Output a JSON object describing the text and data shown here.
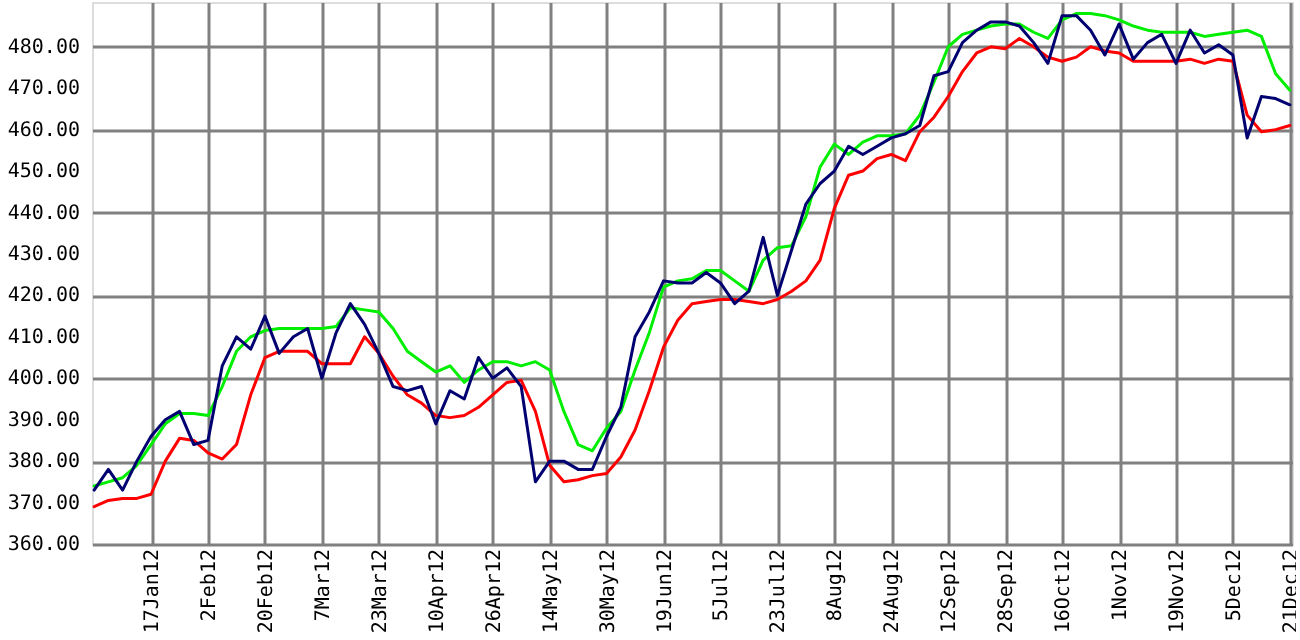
{
  "chart_data": {
    "type": "line",
    "categories": [
      null,
      null,
      null,
      null,
      "17Jan12",
      null,
      null,
      null,
      "2Feb12",
      null,
      null,
      null,
      "20Feb12",
      null,
      null,
      null,
      "7Mar12",
      null,
      null,
      null,
      "23Mar12",
      null,
      null,
      null,
      "10Apr12",
      null,
      null,
      null,
      "26Apr12",
      null,
      null,
      null,
      "14May12",
      null,
      null,
      null,
      "30May12",
      null,
      null,
      null,
      "19Jun12",
      null,
      null,
      null,
      "5Jul12",
      null,
      null,
      null,
      "23Jul12",
      null,
      null,
      null,
      "8Aug12",
      null,
      null,
      null,
      "24Aug12",
      null,
      null,
      null,
      "12Sep12",
      null,
      null,
      null,
      "28Sep12",
      null,
      null,
      null,
      "16Oct12",
      null,
      null,
      null,
      "1Nov12",
      null,
      null,
      null,
      "19Nov12",
      null,
      null,
      null,
      "5Dec12",
      null,
      null,
      null,
      "21Dec12"
    ],
    "ylim": [
      360,
      490.8
    ],
    "yticks": [
      {
        "value": 360,
        "label": "360.00"
      },
      {
        "value": 370,
        "label": "370.00"
      },
      {
        "value": 380,
        "label": "380.00"
      },
      {
        "value": 390,
        "label": "390.00"
      },
      {
        "value": 400,
        "label": "400.00"
      },
      {
        "value": 410,
        "label": "410.00"
      },
      {
        "value": 420,
        "label": "420.00"
      },
      {
        "value": 430,
        "label": "430.00"
      },
      {
        "value": 440,
        "label": "440.00"
      },
      {
        "value": 450,
        "label": "450.00"
      },
      {
        "value": 460,
        "label": "460.00"
      },
      {
        "value": 470,
        "label": "470.00"
      },
      {
        "value": 480,
        "label": "480.00"
      }
    ],
    "grid": true,
    "marker": "none",
    "line_style": "solid",
    "series": [
      {
        "color": "#00ee00",
        "values": [
          374,
          375,
          376,
          379,
          384,
          389,
          391.5,
          391.5,
          391,
          398,
          406.5,
          410,
          411.5,
          412,
          412,
          412,
          412,
          412.5,
          417,
          416.5,
          416,
          412,
          406.5,
          404,
          401.5,
          403,
          399,
          402,
          404,
          404,
          403,
          404,
          402,
          392,
          384,
          382.5,
          388,
          392,
          402,
          411,
          422,
          423.5,
          424,
          426,
          426,
          423.5,
          421,
          428.5,
          431.5,
          432,
          439,
          451,
          456.5,
          454,
          457,
          458.5,
          458.5,
          459,
          463.5,
          471.5,
          480,
          483,
          484,
          485,
          485.5,
          485.5,
          483.5,
          482,
          486.5,
          488,
          488,
          487.5,
          486.5,
          485,
          484,
          483.5,
          483.5,
          483.5,
          482.5,
          483,
          483.5,
          484,
          482.5,
          473.5,
          469.5
        ]
      },
      {
        "color": "#ff0000",
        "values": [
          369,
          370.5,
          371,
          371,
          372,
          380,
          385.5,
          385,
          382,
          380.5,
          384,
          396,
          405,
          406.5,
          406.5,
          406.5,
          403.5,
          403.5,
          403.5,
          410,
          406,
          400.5,
          396,
          394,
          391,
          390.5,
          391,
          393,
          396,
          399,
          399.5,
          392,
          379,
          375,
          375.5,
          376.5,
          377,
          381,
          387.5,
          397,
          407.5,
          414,
          418,
          418.5,
          419,
          419,
          418.5,
          418,
          419,
          421,
          423.5,
          428.5,
          441,
          449,
          450,
          453,
          454,
          452.5,
          459.5,
          463,
          468,
          474,
          478.5,
          480,
          479.5,
          482,
          480,
          477.5,
          476.5,
          477.5,
          480,
          479,
          478.5,
          476.5,
          476.5,
          476.5,
          476.5,
          477,
          476,
          477,
          476.5,
          463.5,
          459.5,
          460,
          461
        ]
      },
      {
        "color": "#000070",
        "values": [
          373,
          378,
          373,
          380,
          386,
          390,
          392,
          384,
          385,
          403,
          410,
          407,
          415,
          406,
          410,
          412,
          400,
          411,
          418,
          413,
          406,
          398,
          397,
          398,
          389,
          397,
          395,
          405,
          400,
          402.5,
          398,
          375,
          380,
          380,
          378,
          378,
          386,
          393,
          410,
          416,
          423.5,
          423,
          423,
          425.5,
          423,
          418,
          421,
          434,
          420,
          431,
          442,
          447,
          450,
          456,
          454,
          456,
          458,
          459,
          461,
          473,
          474,
          481,
          484,
          486,
          486,
          485,
          481,
          476,
          487.5,
          487.5,
          484,
          478,
          485.5,
          477,
          481,
          483,
          476,
          484,
          478.5,
          480.5,
          478,
          458,
          468,
          467.5,
          466
        ]
      }
    ]
  }
}
